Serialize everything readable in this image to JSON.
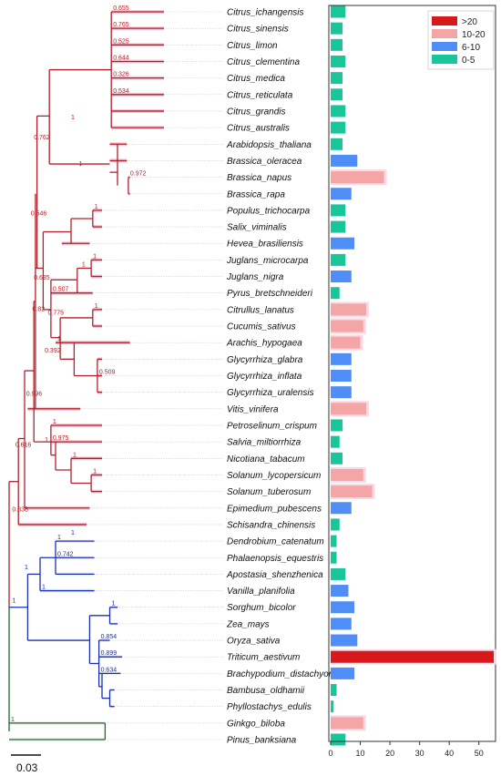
{
  "legend": [
    {
      "label": ">20",
      "color": "#d7191c"
    },
    {
      "label": "10-20",
      "color": "#f4a6a6"
    },
    {
      "label": "6-10",
      "color": "#4f8ef7"
    },
    {
      "label": "0-5",
      "color": "#19c69a"
    }
  ],
  "scale_label": "0.03",
  "chart_data": {
    "type": "bar",
    "orientation": "horizontal",
    "xlim": [
      0,
      55
    ],
    "xticks": [
      "0",
      "10",
      "20",
      "30",
      "40",
      "50"
    ],
    "categories": [
      "Citrus_ichangensis",
      "Citrus_sinensis",
      "Citrus_limon",
      "Citrus_clementina",
      "Citrus_medica",
      "Citrus_reticulata",
      "Citrus_grandis",
      "Citrus_australis",
      "Arabidopsis_thaliana",
      "Brassica_oleracea",
      "Brassica_napus",
      "Brassica_rapa",
      "Populus_trichocarpa",
      "Salix_viminalis",
      "Hevea_brasiliensis",
      "Juglans_microcarpa",
      "Juglans_nigra",
      "Pyrus_bretschneideri",
      "Citrullus_lanatus",
      "Cucumis_sativus",
      "Arachis_hypogaea",
      "Glycyrrhiza_glabra",
      "Glycyrrhiza_inflata",
      "Glycyrrhiza_uralensis",
      "Vitis_vinifera",
      "Petroselinum_crispum",
      "Salvia_miltiorrhiza",
      "Nicotiana_tabacum",
      "Solanum_lycopersicum",
      "Solanum_tuberosum",
      "Epimedium_pubescens",
      "Schisandra_chinensis",
      "Dendrobium_catenatum",
      "Phalaenopsis_equestris",
      "Apostasia_shenzhenica",
      "Vanilla_planifolia",
      "Sorghum_bicolor",
      "Zea_mays",
      "Oryza_sativa",
      "Triticum_aestivum",
      "Brachypodium_distachyon",
      "Bambusa_oldhamii",
      "Phyllostachys_edulis",
      "Ginkgo_biloba",
      "Pinus_banksiana"
    ],
    "values": [
      5,
      4,
      4,
      5,
      4,
      4,
      5,
      5,
      4,
      9,
      18,
      7,
      5,
      5,
      8,
      5,
      7,
      3,
      12,
      11,
      10,
      7,
      7,
      7,
      12,
      4,
      3,
      4,
      11,
      14,
      7,
      3,
      2,
      2,
      5,
      6,
      8,
      7,
      9,
      56,
      8,
      2,
      1,
      11,
      5
    ],
    "classes": [
      "0-5",
      "0-5",
      "0-5",
      "0-5",
      "0-5",
      "0-5",
      "0-5",
      "0-5",
      "0-5",
      "6-10",
      "10-20",
      "6-10",
      "0-5",
      "0-5",
      "6-10",
      "0-5",
      "6-10",
      "0-5",
      "10-20",
      "10-20",
      "10-20",
      "6-10",
      "6-10",
      "6-10",
      "10-20",
      "0-5",
      "0-5",
      "0-5",
      "10-20",
      "10-20",
      "6-10",
      "0-5",
      "0-5",
      "0-5",
      "0-5",
      "6-10",
      "6-10",
      "6-10",
      "6-10",
      ">20",
      "6-10",
      "0-5",
      "0-5",
      "10-20",
      "0-5"
    ]
  },
  "tree": {
    "branches": [
      {
        "x1": 0.66,
        "x2": 1.0,
        "y": 0,
        "l": "0.655",
        "c": "r"
      },
      {
        "x1": 0.66,
        "x2": 1.0,
        "y": 1,
        "l": "0.765",
        "c": "r"
      },
      {
        "x1": 0.66,
        "x2": 1.0,
        "y": 2,
        "l": "0.525",
        "c": "r"
      },
      {
        "x1": 0.66,
        "x2": 1.0,
        "y": 3,
        "l": "0.644",
        "c": "r"
      },
      {
        "x1": 0.66,
        "x2": 1.0,
        "y": 4,
        "l": "0.326",
        "c": "r"
      },
      {
        "x1": 0.66,
        "x2": 1.0,
        "y": 5,
        "l": "0.534",
        "c": "r"
      },
      {
        "x1": 0.66,
        "x2": 1.0,
        "y": 6,
        "l": "",
        "c": "r"
      },
      {
        "x1": 0.66,
        "x2": 1.0,
        "y": 7,
        "l": "",
        "c": "r"
      },
      {
        "x1": 0.65,
        "x2": 0.76,
        "y": 8,
        "l": "",
        "c": "r"
      },
      {
        "x1": 0.65,
        "x2": 0.76,
        "y": 9,
        "l": "",
        "c": "r"
      },
      {
        "x1": 0.77,
        "x2": 0.78,
        "y": 10,
        "l": "0.972",
        "c": "r"
      },
      {
        "x1": 0.77,
        "x2": 0.78,
        "y": 11,
        "l": "",
        "c": "r"
      },
      {
        "x1": 0.54,
        "x2": 0.6,
        "y": 12,
        "l": "1",
        "c": "r"
      },
      {
        "x1": 0.54,
        "x2": 0.6,
        "y": 13,
        "l": "",
        "c": "r"
      },
      {
        "x1": 0.34,
        "x2": 0.52,
        "y": 14,
        "l": "",
        "c": "r"
      },
      {
        "x1": 0.53,
        "x2": 0.6,
        "y": 15,
        "l": "1",
        "c": "r"
      },
      {
        "x1": 0.53,
        "x2": 0.6,
        "y": 16,
        "l": "",
        "c": "r"
      },
      {
        "x1": 0.27,
        "x2": 0.54,
        "y": 17,
        "l": "0.507",
        "c": "r"
      },
      {
        "x1": 0.54,
        "x2": 0.6,
        "y": 18,
        "l": "1",
        "c": "r"
      },
      {
        "x1": 0.54,
        "x2": 0.6,
        "y": 19,
        "l": "",
        "c": "r"
      },
      {
        "x1": 0.3,
        "x2": 0.78,
        "y": 20,
        "l": "1",
        "c": "r"
      },
      {
        "x1": 0.57,
        "x2": 0.6,
        "y": 21,
        "l": "",
        "c": "r"
      },
      {
        "x1": 0.57,
        "x2": 0.6,
        "y": 22,
        "l": "0.509",
        "c": "r"
      },
      {
        "x1": 0.57,
        "x2": 0.6,
        "y": 23,
        "l": "",
        "c": "r"
      },
      {
        "x1": 0.12,
        "x2": 0.46,
        "y": 24,
        "l": "",
        "c": "r"
      },
      {
        "x1": 0.27,
        "x2": 0.6,
        "y": 25,
        "l": "1",
        "c": "r"
      },
      {
        "x1": 0.27,
        "x2": 0.6,
        "y": 26,
        "l": "0.975",
        "c": "r"
      },
      {
        "x1": 0.4,
        "x2": 0.6,
        "y": 27,
        "l": "1",
        "c": "r"
      },
      {
        "x1": 0.53,
        "x2": 0.6,
        "y": 28,
        "l": "1",
        "c": "r"
      },
      {
        "x1": 0.53,
        "x2": 0.6,
        "y": 29,
        "l": "",
        "c": "r"
      },
      {
        "x1": 0.1,
        "x2": 0.52,
        "y": 30,
        "l": "",
        "c": "r"
      },
      {
        "x1": 0.06,
        "x2": 0.5,
        "y": 31,
        "l": "",
        "c": "r"
      },
      {
        "x1": 0.3,
        "x2": 0.55,
        "y": 32,
        "l": "1",
        "c": "b"
      },
      {
        "x1": 0.3,
        "x2": 0.55,
        "y": 33,
        "l": "0.742",
        "c": "b"
      },
      {
        "x1": 0.3,
        "x2": 0.55,
        "y": 34,
        "l": "",
        "c": "b"
      },
      {
        "x1": 0.2,
        "x2": 0.55,
        "y": 35,
        "l": "1",
        "c": "b"
      },
      {
        "x1": 0.65,
        "x2": 0.7,
        "y": 36,
        "l": "1",
        "c": "b"
      },
      {
        "x1": 0.65,
        "x2": 0.7,
        "y": 37,
        "l": "",
        "c": "b"
      },
      {
        "x1": 0.58,
        "x2": 0.65,
        "y": 38,
        "l": "0.854",
        "c": "b"
      },
      {
        "x1": 0.58,
        "x2": 0.73,
        "y": 39,
        "l": "0.899",
        "c": "b"
      },
      {
        "x1": 0.58,
        "x2": 0.72,
        "y": 40,
        "l": "0.634",
        "c": "b"
      },
      {
        "x1": 0.65,
        "x2": 0.68,
        "y": 41,
        "l": "",
        "c": "b"
      },
      {
        "x1": 0.65,
        "x2": 0.68,
        "y": 42,
        "l": "",
        "c": "b"
      },
      {
        "x1": 0.0,
        "x2": 0.62,
        "y": 43,
        "l": "1",
        "c": "g"
      },
      {
        "x1": 0.0,
        "x2": 0.62,
        "y": 44,
        "l": "",
        "c": "g"
      }
    ],
    "internal_labels": [
      {
        "t": "1",
        "c": "r"
      },
      {
        "t": "0.762",
        "c": "r"
      },
      {
        "t": "1",
        "c": "r"
      },
      {
        "t": "0.546",
        "c": "r"
      },
      {
        "t": "1",
        "c": "r"
      },
      {
        "t": "0.635",
        "c": "r"
      },
      {
        "t": "0.82",
        "c": "r"
      },
      {
        "t": "0.775",
        "c": "r"
      },
      {
        "t": "0.392",
        "c": "r"
      },
      {
        "t": "0.996",
        "c": "r"
      },
      {
        "t": "1",
        "c": "r"
      },
      {
        "t": "0.616",
        "c": "r"
      },
      {
        "t": "0.838",
        "c": "r"
      },
      {
        "t": "1",
        "c": "b"
      },
      {
        "t": "1",
        "c": "b"
      },
      {
        "t": "1",
        "c": "b"
      }
    ]
  }
}
